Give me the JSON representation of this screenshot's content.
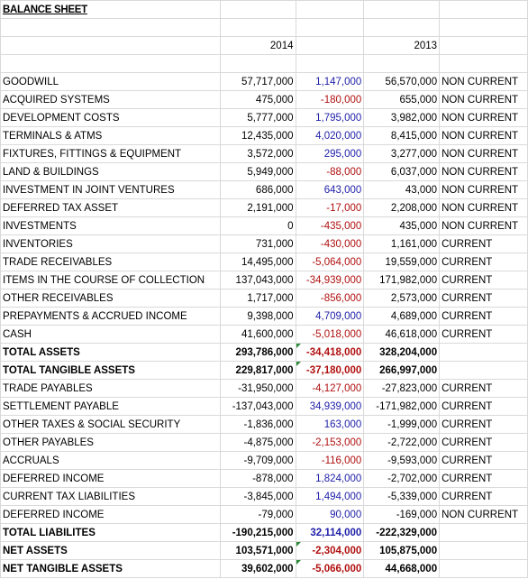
{
  "title": "BALANCE SHEET",
  "headers": {
    "y2014": "2014",
    "y2013": "2013"
  },
  "colors": {
    "positive_change": "#1f1fa8",
    "negative_change": "#b01010",
    "gridline": "#d9d9d9",
    "error_marker": "#2e8b3a"
  },
  "rows": [
    {
      "label": "GOODWILL",
      "y2014": "57,717,000",
      "change": "1,147,000",
      "sign": "pos",
      "y2013": "56,570,000",
      "class": "NON CURRENT"
    },
    {
      "label": "ACQUIRED SYSTEMS",
      "y2014": "475,000",
      "change": "-180,000",
      "sign": "neg",
      "y2013": "655,000",
      "class": "NON CURRENT"
    },
    {
      "label": "DEVELOPMENT COSTS",
      "y2014": "5,777,000",
      "change": "1,795,000",
      "sign": "pos",
      "y2013": "3,982,000",
      "class": "NON CURRENT"
    },
    {
      "label": "TERMINALS & ATMS",
      "y2014": "12,435,000",
      "change": "4,020,000",
      "sign": "pos",
      "y2013": "8,415,000",
      "class": "NON CURRENT"
    },
    {
      "label": "FIXTURES, FITTINGS & EQUIPMENT",
      "y2014": "3,572,000",
      "change": "295,000",
      "sign": "pos",
      "y2013": "3,277,000",
      "class": "NON CURRENT"
    },
    {
      "label": "LAND & BUILDINGS",
      "y2014": "5,949,000",
      "change": "-88,000",
      "sign": "neg",
      "y2013": "6,037,000",
      "class": "NON CURRENT"
    },
    {
      "label": "INVESTMENT IN JOINT VENTURES",
      "y2014": "686,000",
      "change": "643,000",
      "sign": "pos",
      "y2013": "43,000",
      "class": "NON CURRENT"
    },
    {
      "label": "DEFERRED TAX ASSET",
      "y2014": "2,191,000",
      "change": "-17,000",
      "sign": "neg",
      "y2013": "2,208,000",
      "class": "NON CURRENT"
    },
    {
      "label": "INVESTMENTS",
      "y2014": "0",
      "change": "-435,000",
      "sign": "neg",
      "y2013": "435,000",
      "class": "NON CURRENT"
    },
    {
      "label": "INVENTORIES",
      "y2014": "731,000",
      "change": "-430,000",
      "sign": "neg",
      "y2013": "1,161,000",
      "class": "CURRENT"
    },
    {
      "label": "TRADE RECEIVABLES",
      "y2014": "14,495,000",
      "change": "-5,064,000",
      "sign": "neg",
      "y2013": "19,559,000",
      "class": "CURRENT"
    },
    {
      "label": "ITEMS IN THE COURSE OF COLLECTION",
      "y2014": "137,043,000",
      "change": "-34,939,000",
      "sign": "neg",
      "y2013": "171,982,000",
      "class": "CURRENT"
    },
    {
      "label": "OTHER RECEIVABLES",
      "y2014": "1,717,000",
      "change": "-856,000",
      "sign": "neg",
      "y2013": "2,573,000",
      "class": "CURRENT"
    },
    {
      "label": "PREPAYMENTS & ACCRUED INCOME",
      "y2014": "9,398,000",
      "change": "4,709,000",
      "sign": "pos",
      "y2013": "4,689,000",
      "class": "CURRENT"
    },
    {
      "label": "CASH",
      "y2014": "41,600,000",
      "change": "-5,018,000",
      "sign": "neg",
      "y2013": "46,618,000",
      "class": "CURRENT"
    },
    {
      "label": "TOTAL ASSETS",
      "y2014": "293,786,000",
      "change": "-34,418,000",
      "sign": "neg",
      "y2013": "328,204,000",
      "class": "",
      "bold": true,
      "marker": true
    },
    {
      "label": "TOTAL TANGIBLE ASSETS",
      "y2014": "229,817,000",
      "change": "-37,180,000",
      "sign": "neg",
      "y2013": "266,997,000",
      "class": "",
      "bold": true,
      "marker": true
    },
    {
      "label": "TRADE PAYABLES",
      "y2014": "-31,950,000",
      "change": "-4,127,000",
      "sign": "neg",
      "y2013": "-27,823,000",
      "class": "CURRENT"
    },
    {
      "label": "SETTLEMENT PAYABLE",
      "y2014": "-137,043,000",
      "change": "34,939,000",
      "sign": "pos",
      "y2013": "-171,982,000",
      "class": "CURRENT"
    },
    {
      "label": "OTHER TAXES & SOCIAL SECURITY",
      "y2014": "-1,836,000",
      "change": "163,000",
      "sign": "pos",
      "y2013": "-1,999,000",
      "class": "CURRENT"
    },
    {
      "label": "OTHER PAYABLES",
      "y2014": "-4,875,000",
      "change": "-2,153,000",
      "sign": "neg",
      "y2013": "-2,722,000",
      "class": "CURRENT"
    },
    {
      "label": "ACCRUALS",
      "y2014": "-9,709,000",
      "change": "-116,000",
      "sign": "neg",
      "y2013": "-9,593,000",
      "class": "CURRENT"
    },
    {
      "label": "DEFERRED INCOME",
      "y2014": "-878,000",
      "change": "1,824,000",
      "sign": "pos",
      "y2013": "-2,702,000",
      "class": "CURRENT"
    },
    {
      "label": "CURRENT TAX LIABILITIES",
      "y2014": "-3,845,000",
      "change": "1,494,000",
      "sign": "pos",
      "y2013": "-5,339,000",
      "class": "CURRENT"
    },
    {
      "label": "DEFERRED INCOME",
      "y2014": "-79,000",
      "change": "90,000",
      "sign": "pos",
      "y2013": "-169,000",
      "class": "NON CURRENT"
    },
    {
      "label": "TOTAL LIABILITES",
      "y2014": "-190,215,000",
      "change": "32,114,000",
      "sign": "pos",
      "y2013": "-222,329,000",
      "class": "",
      "bold": true,
      "marker": false
    },
    {
      "label": "NET ASSETS",
      "y2014": "103,571,000",
      "change": "-2,304,000",
      "sign": "neg",
      "y2013": "105,875,000",
      "class": "",
      "bold": true,
      "marker": true
    },
    {
      "label": "NET TANGIBLE ASSETS",
      "y2014": "39,602,000",
      "change": "-5,066,000",
      "sign": "neg",
      "y2013": "44,668,000",
      "class": "",
      "bold": true,
      "marker": true
    }
  ]
}
